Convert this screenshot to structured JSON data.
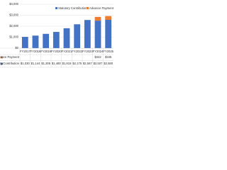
{
  "chart_data": {
    "type": "bar",
    "stacked": true,
    "categories": [
      "FY2017",
      "FY2018",
      "FY2019",
      "FY2020",
      "FY2021",
      "FY2022",
      "FY2023",
      "FY2024",
      "FY2025"
    ],
    "series": [
      {
        "name": "Statutory Contribution",
        "color": "#4472c4",
        "values": [
          1030,
          1144,
          1305,
          1480,
          1815,
          2175,
          2567,
          2507,
          2580
        ],
        "value_labels": [
          "$1,030",
          "$1,144",
          "$1,305",
          "$1,480",
          "$1,815",
          "$2,175",
          "$2,567",
          "$2,507",
          "$2,580"
        ]
      },
      {
        "name": "Advance Payment",
        "color": "#ed7d31",
        "values": [
          null,
          null,
          null,
          null,
          null,
          null,
          null,
          342,
          345
        ],
        "value_labels": [
          null,
          null,
          null,
          null,
          null,
          null,
          null,
          "$342",
          "$345"
        ]
      }
    ],
    "ylim": [
      0,
      4000
    ],
    "yticks": [
      {
        "value": 0,
        "label": "$0"
      },
      {
        "value": 1000,
        "label": "$1,000"
      },
      {
        "value": 2000,
        "label": "$2,000"
      },
      {
        "value": 3000,
        "label": "$3,000"
      },
      {
        "value": 4000,
        "label": "$4,000"
      }
    ],
    "grid": true,
    "legend": "top"
  }
}
